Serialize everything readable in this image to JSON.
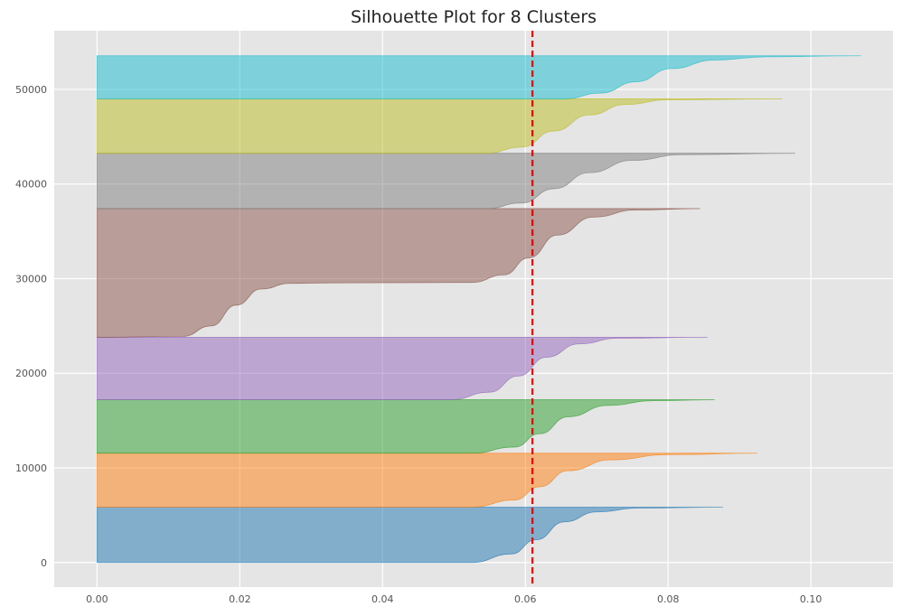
{
  "chart_data": {
    "type": "area",
    "title": "Silhouette Plot for 8 Clusters",
    "xlabel": "",
    "ylabel": "",
    "xlim": [
      -0.006,
      0.1115
    ],
    "ylim": [
      -2600,
      56200
    ],
    "x_ticks": [
      0.0,
      0.02,
      0.04,
      0.06,
      0.08,
      0.1
    ],
    "x_tick_labels": [
      "0.00",
      "0.02",
      "0.04",
      "0.06",
      "0.08",
      "0.10"
    ],
    "y_ticks": [
      0,
      10000,
      20000,
      30000,
      40000,
      50000
    ],
    "y_tick_labels": [
      "0",
      "10000",
      "20000",
      "30000",
      "40000",
      "50000"
    ],
    "grid": true,
    "background": "#e5e5e5",
    "grid_color": "#ffffff",
    "average_silhouette": 0.061,
    "average_line_color": "#e00000",
    "clusters": [
      {
        "y_range": [
          0,
          5850
        ],
        "color": "#1f77b4",
        "profile": [
          [
            0.0525,
            0
          ],
          [
            0.058,
            900
          ],
          [
            0.0615,
            2400
          ],
          [
            0.0655,
            4300
          ],
          [
            0.07,
            5350
          ],
          [
            0.076,
            5750
          ],
          [
            0.0877,
            5850
          ]
        ]
      },
      {
        "y_range": [
          5850,
          11550
        ],
        "color": "#ff7f0e",
        "profile": [
          [
            0.0525,
            5850
          ],
          [
            0.0585,
            6600
          ],
          [
            0.062,
            8000
          ],
          [
            0.066,
            9700
          ],
          [
            0.072,
            10850
          ],
          [
            0.08,
            11400
          ],
          [
            0.0925,
            11550
          ]
        ]
      },
      {
        "y_range": [
          11550,
          17200
        ],
        "color": "#2ca02c",
        "profile": [
          [
            0.0525,
            11550
          ],
          [
            0.0585,
            12200
          ],
          [
            0.062,
            13600
          ],
          [
            0.066,
            15400
          ],
          [
            0.0715,
            16600
          ],
          [
            0.078,
            17100
          ],
          [
            0.0865,
            17200
          ]
        ]
      },
      {
        "y_range": [
          17200,
          23800
        ],
        "color": "#9467bd",
        "profile": [
          [
            0.0495,
            17200
          ],
          [
            0.055,
            18000
          ],
          [
            0.059,
            19700
          ],
          [
            0.063,
            21700
          ],
          [
            0.0675,
            23100
          ],
          [
            0.073,
            23700
          ],
          [
            0.0855,
            23800
          ]
        ]
      },
      {
        "y_range": [
          23800,
          37400
        ],
        "color": "#8c564b",
        "profile": [
          [
            0.0,
            23800
          ],
          [
            0.012,
            23900
          ],
          [
            0.016,
            25000
          ],
          [
            0.0195,
            27200
          ],
          [
            0.023,
            28900
          ],
          [
            0.027,
            29500
          ],
          [
            0.032,
            29550
          ],
          [
            0.0525,
            29600
          ],
          [
            0.057,
            30400
          ],
          [
            0.0605,
            32200
          ],
          [
            0.0645,
            34600
          ],
          [
            0.0695,
            36500
          ],
          [
            0.0755,
            37250
          ],
          [
            0.0845,
            37400
          ]
        ]
      },
      {
        "y_range": [
          37400,
          43250
        ],
        "color": "#7f7f7f",
        "profile": [
          [
            0.0545,
            37400
          ],
          [
            0.0595,
            38000
          ],
          [
            0.064,
            39500
          ],
          [
            0.069,
            41200
          ],
          [
            0.075,
            42500
          ],
          [
            0.082,
            43100
          ],
          [
            0.0978,
            43250
          ]
        ]
      },
      {
        "y_range": [
          43250,
          49000
        ],
        "color": "#bcbd22",
        "profile": [
          [
            0.0545,
            43250
          ],
          [
            0.0595,
            43900
          ],
          [
            0.064,
            45600
          ],
          [
            0.069,
            47300
          ],
          [
            0.074,
            48400
          ],
          [
            0.08,
            48900
          ],
          [
            0.096,
            49000
          ]
        ]
      },
      {
        "y_range": [
          49000,
          53550
        ],
        "color": "#17becf",
        "profile": [
          [
            0.0655,
            49000
          ],
          [
            0.0705,
            49600
          ],
          [
            0.0755,
            50800
          ],
          [
            0.0805,
            52200
          ],
          [
            0.0865,
            53100
          ],
          [
            0.094,
            53450
          ],
          [
            0.107,
            53550
          ]
        ]
      }
    ]
  }
}
